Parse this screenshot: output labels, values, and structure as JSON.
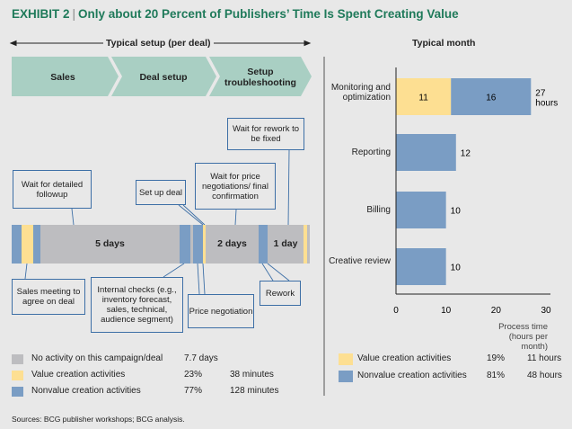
{
  "title": {
    "exhibit": "EXHIBIT 2",
    "text": "Only about 20 Percent of Publishers’ Time Is Spent Creating Value"
  },
  "left": {
    "header": "Typical setup (per deal)",
    "phases": [
      "Sales",
      "Deal setup",
      "Setup troubleshooting"
    ],
    "durations": [
      "5 days",
      "2 days",
      "1 day"
    ],
    "timeline": [
      {
        "type": "nonvalue"
      },
      {
        "type": "value"
      },
      {
        "type": "nonvalue"
      },
      {
        "type": "none",
        "label": "5 days"
      },
      {
        "type": "nonvalue"
      },
      {
        "type": "none"
      },
      {
        "type": "nonvalue"
      },
      {
        "type": "value"
      },
      {
        "type": "none",
        "label": "2 days"
      },
      {
        "type": "nonvalue"
      },
      {
        "type": "none",
        "label": "1 day"
      },
      {
        "type": "value"
      },
      {
        "type": "none"
      }
    ],
    "callouts": {
      "wait_followup": "Wait for detailed followup",
      "set_up_deal": "Set up deal",
      "wait_price": "Wait for price negotiations/ final confirmation",
      "wait_rework": "Wait for rework to be fixed",
      "sales_meeting": "Sales meeting to agree on deal",
      "internal_checks": "Internal checks (e.g., inventory forecast, sales, technical, audience segment)",
      "price_negotiation": "Price negotiation",
      "rework": "Rework"
    },
    "legend": [
      {
        "label": "No activity on this campaign/deal",
        "pct": "7.7 days",
        "amount": ""
      },
      {
        "label": "Value creation activities",
        "pct": "23%",
        "amount": "38 minutes"
      },
      {
        "label": "Nonvalue creation activities",
        "pct": "77%",
        "amount": "128 minutes"
      }
    ]
  },
  "colors": {
    "none": "#bdbdc0",
    "value": "#fddf92",
    "nonvalue": "#7a9dc4",
    "chevron": "#a9cfc3",
    "title": "#1f7a5a"
  },
  "chart_data": {
    "type": "bar",
    "orientation": "horizontal",
    "stacked": true,
    "title": "Typical month",
    "categories": [
      "Monitoring and optimization",
      "Reporting",
      "Billing",
      "Creative review"
    ],
    "series": [
      {
        "name": "Value creation activities",
        "values": [
          11,
          0,
          0,
          0
        ]
      },
      {
        "name": "Nonvalue creation activities",
        "values": [
          16,
          12,
          10,
          10
        ]
      }
    ],
    "segment_labels": [
      [
        "11",
        "16"
      ],
      [
        "12"
      ],
      [
        "10"
      ],
      [
        "10"
      ]
    ],
    "total_labels": [
      "27 hours",
      "12",
      "10",
      "10"
    ],
    "xlabel": "Process time (hours per month)",
    "xlim": [
      0,
      30
    ],
    "xticks": [
      0,
      10,
      20,
      30
    ],
    "grid": false,
    "legend": [
      {
        "label": "Value creation activities",
        "pct": "19%",
        "amount": "11 hours"
      },
      {
        "label": "Nonvalue creation activities",
        "pct": "81%",
        "amount": "48 hours"
      }
    ],
    "legend_position": "bottom"
  },
  "source": "Sources: BCG publisher workshops; BCG analysis."
}
